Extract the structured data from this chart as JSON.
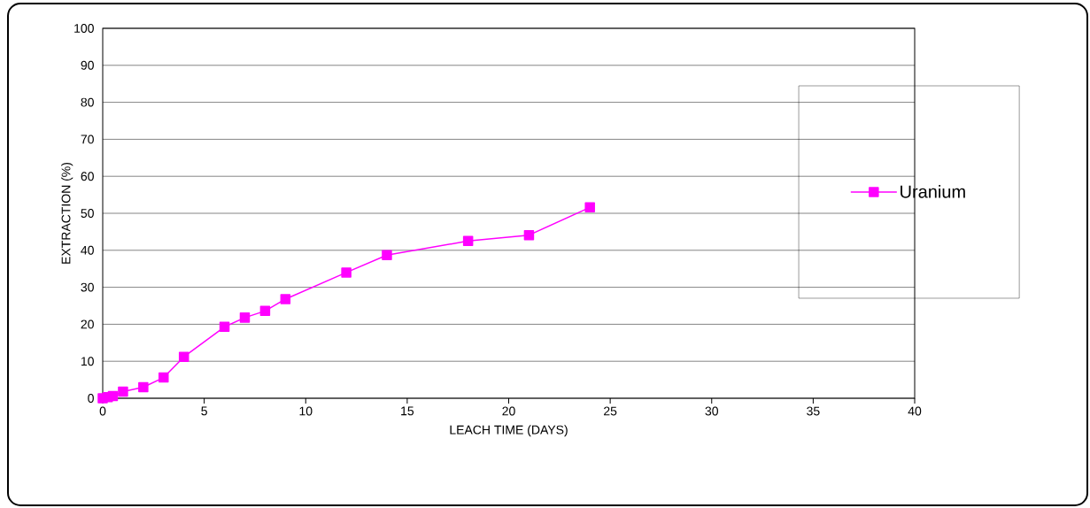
{
  "chart_data": {
    "type": "line",
    "xlabel": "LEACH TIME (DAYS)",
    "ylabel": "EXTRACTION (%)",
    "series": [
      {
        "name": "Uranium",
        "color": "#ff00ff",
        "x": [
          0,
          0.25,
          0.5,
          1,
          2,
          3,
          4,
          6,
          7,
          8,
          9,
          12,
          14,
          18,
          21,
          24
        ],
        "values": [
          0,
          0.3,
          0.6,
          1.8,
          3,
          5.6,
          11.2,
          19.3,
          21.8,
          23.6,
          26.8,
          34,
          38.7,
          42.5,
          44.1,
          51.6
        ]
      }
    ],
    "xlim": [
      0,
      40
    ],
    "xticks": [
      0,
      5,
      10,
      15,
      20,
      25,
      30,
      35,
      40
    ],
    "ylim": [
      0,
      100
    ],
    "yticks": [
      0,
      10,
      20,
      30,
      40,
      50,
      60,
      70,
      80,
      90,
      100
    ],
    "grid": "y",
    "legend": "right",
    "marker": "square",
    "line_style": "solid"
  }
}
